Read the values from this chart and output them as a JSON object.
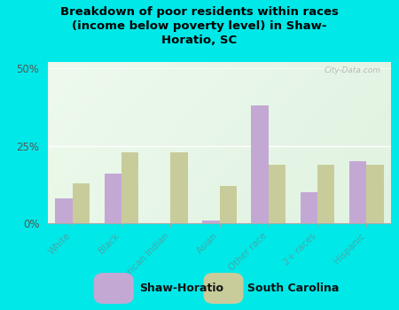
{
  "title": "Breakdown of poor residents within races\n(income below poverty level) in Shaw-\nHoratio, SC",
  "categories": [
    "White",
    "Black",
    "American Indian",
    "Asian",
    "Other race",
    "2+ races",
    "Hispanic"
  ],
  "shaw_horatio": [
    8,
    16,
    0,
    1,
    38,
    10,
    20
  ],
  "south_carolina": [
    13,
    23,
    23,
    12,
    19,
    19,
    19
  ],
  "shaw_color": "#c4a8d4",
  "sc_color": "#c8cc9a",
  "bg_outer": "#00e8e8",
  "ylim": [
    0,
    52
  ],
  "yticks": [
    0,
    25,
    50
  ],
  "ytick_labels": [
    "0%",
    "25%",
    "50%"
  ],
  "watermark": "City-Data.com",
  "bar_width": 0.35,
  "legend_labels": [
    "Shaw-Horatio",
    "South Carolina"
  ],
  "tick_color": "#44aaaa",
  "title_color": "#000000"
}
